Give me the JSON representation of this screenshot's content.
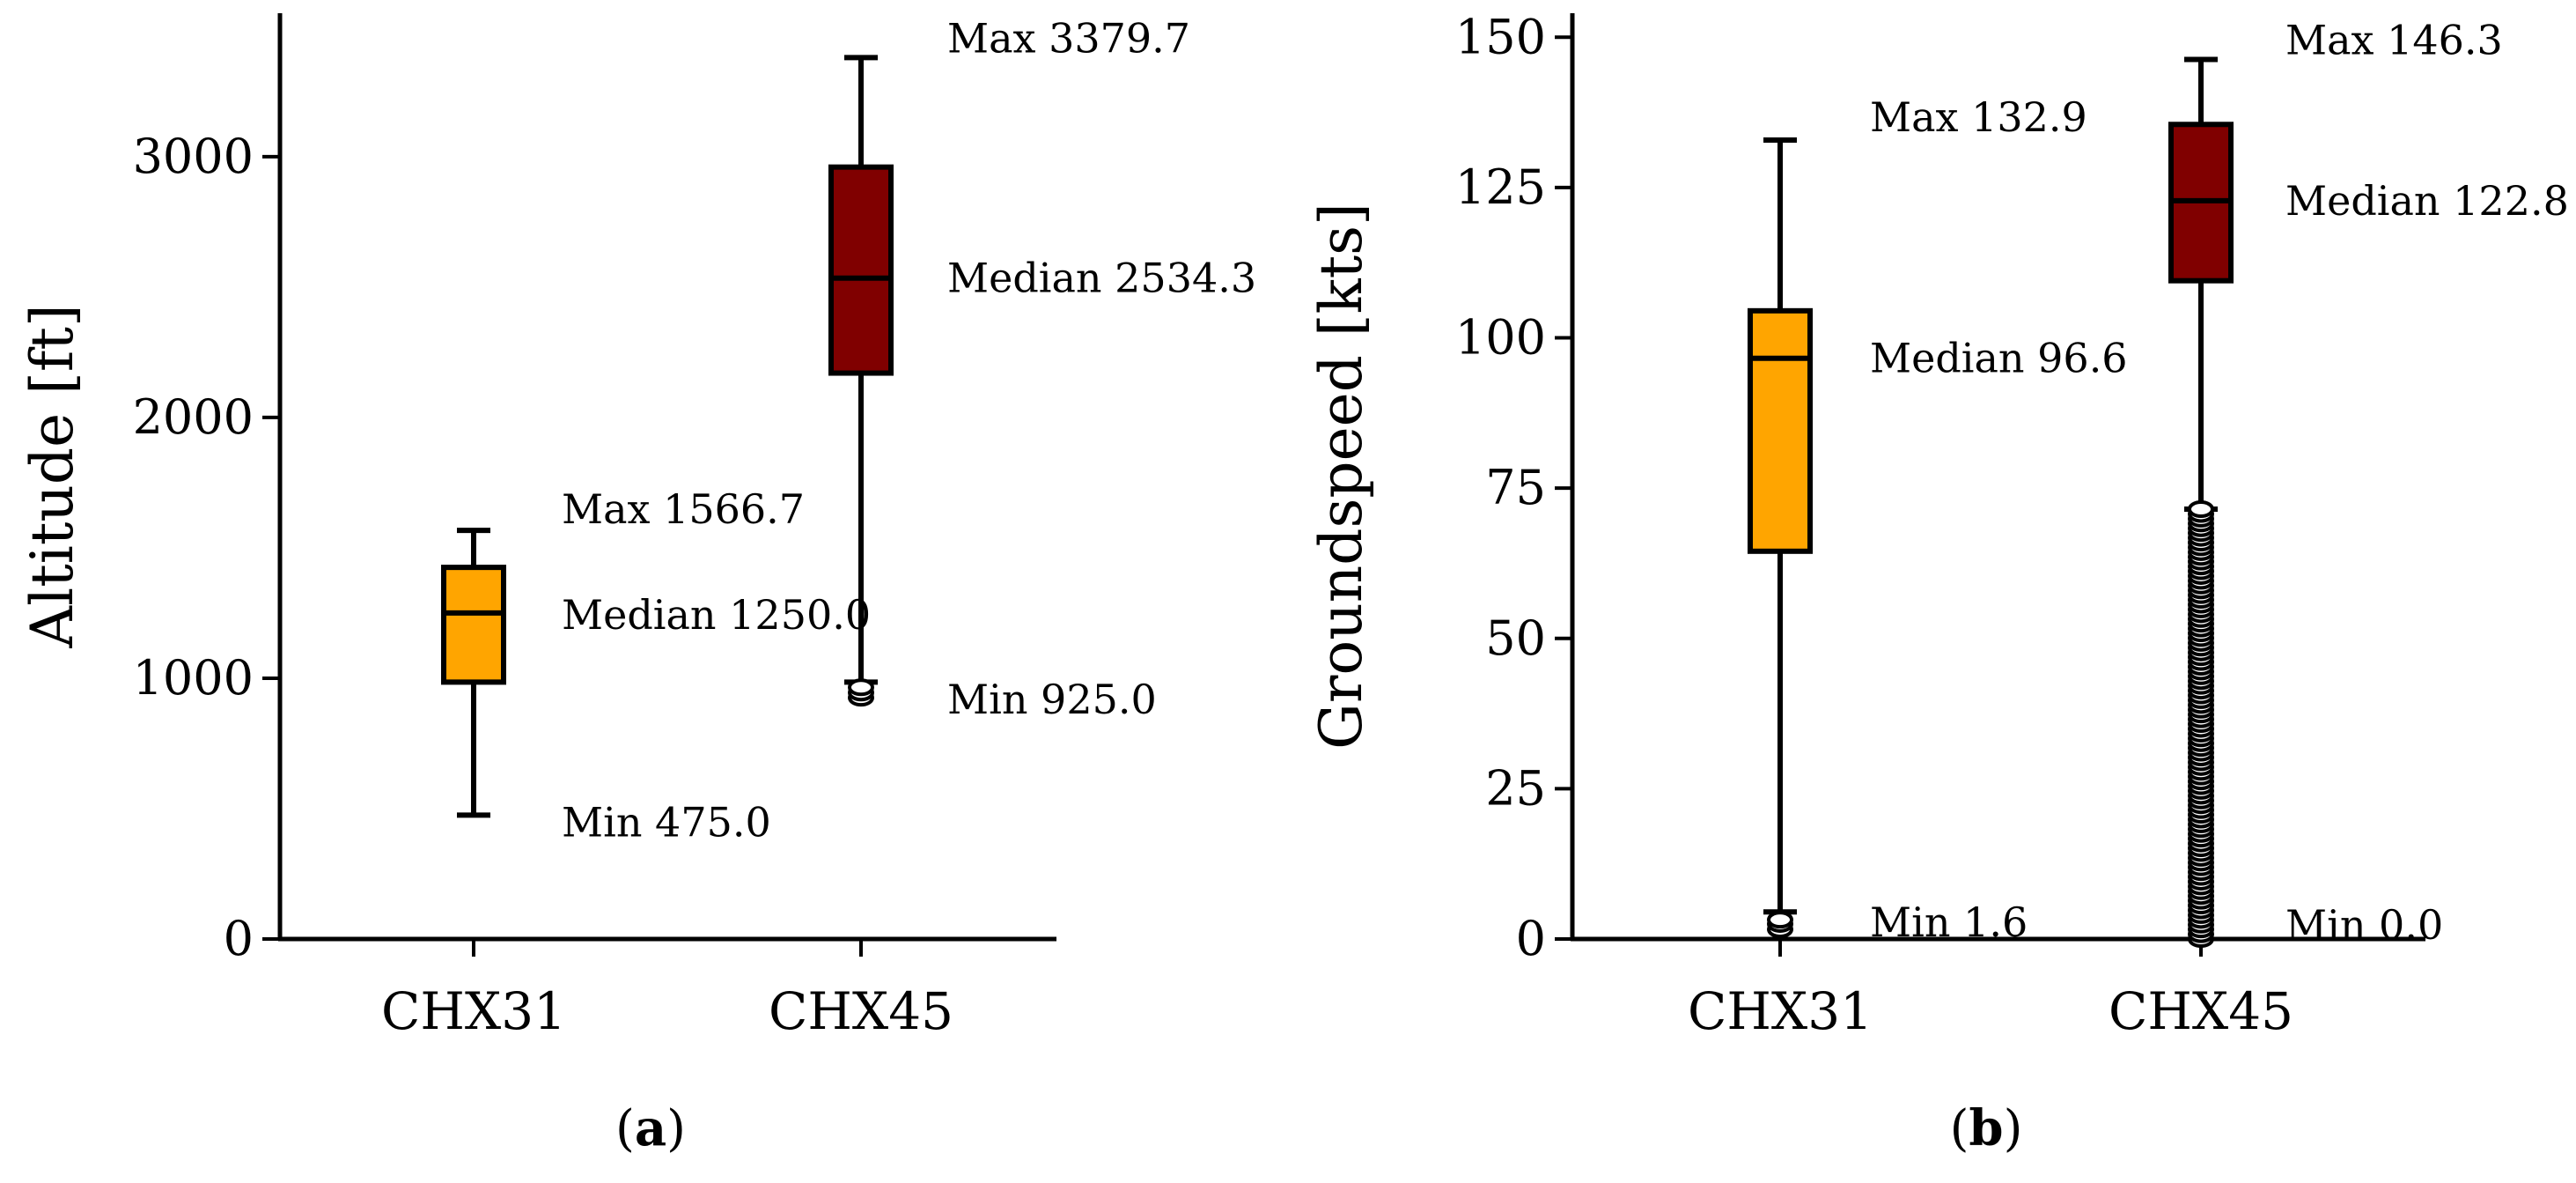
{
  "chart_data": [
    {
      "type": "box",
      "panel_label": "(a)",
      "ylabel": "Altitude [ft]",
      "ylim": [
        0,
        3550
      ],
      "yticks": [
        0,
        1000,
        2000,
        3000
      ],
      "categories": [
        "CHX31",
        "CHX45"
      ],
      "boxes": [
        {
          "name": "CHX31",
          "color": "#FFA500",
          "whisker_low": 475.0,
          "q1": 985,
          "median": 1250.0,
          "q3": 1425,
          "whisker_high": 1566.7,
          "outliers": [],
          "annotations": [
            "Max 1566.7",
            "Median 1250.0",
            "Min 475.0"
          ]
        },
        {
          "name": "CHX45",
          "color": "#800000",
          "whisker_low": 985,
          "q1": 2170,
          "median": 2534.3,
          "q3": 2960,
          "whisker_high": 3379.7,
          "outliers": [
            925,
            945,
            965
          ],
          "annotations": [
            "Max 3379.7",
            "Median 2534.3",
            "Min 925.0"
          ]
        }
      ]
    },
    {
      "type": "box",
      "panel_label": "(b)",
      "ylabel": "Groundspeed [kts]",
      "ylim": [
        0,
        154
      ],
      "yticks": [
        0,
        25,
        50,
        75,
        100,
        125,
        150
      ],
      "categories": [
        "CHX31",
        "CHX45"
      ],
      "boxes": [
        {
          "name": "CHX31",
          "color": "#FFA500",
          "whisker_low": 4.5,
          "q1": 64.5,
          "median": 96.6,
          "q3": 104.5,
          "whisker_high": 132.9,
          "outliers": [
            1.6,
            2.5,
            3.2
          ],
          "annotations": [
            "Max 132.9",
            "Median 96.6",
            "Min 1.6"
          ]
        },
        {
          "name": "CHX45",
          "color": "#800000",
          "whisker_low": 71.5,
          "q1": 109.5,
          "median": 122.8,
          "q3": 135.5,
          "whisker_high": 146.3,
          "outliers_range": [
            0.0,
            71.5
          ],
          "annotations": [
            "Max 146.3",
            "Median 122.8",
            "Min 0.0"
          ]
        }
      ]
    }
  ]
}
